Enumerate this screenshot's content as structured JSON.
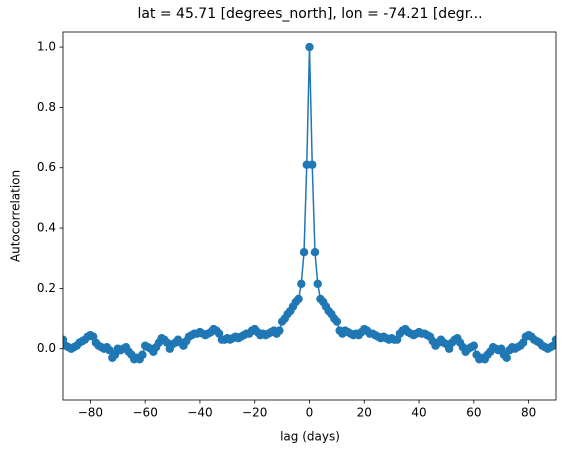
{
  "chart_data": {
    "type": "line",
    "title": "lat = 45.71 [degrees_north], lon = -74.21 [degr...",
    "xlabel": "lag (days)",
    "ylabel": "Autocorrelation",
    "x": [
      -90,
      -89,
      -88,
      -87,
      -86,
      -85,
      -84,
      -83,
      -82,
      -81,
      -80,
      -79,
      -78,
      -77,
      -76,
      -75,
      -74,
      -73,
      -72,
      -71,
      -70,
      -69,
      -68,
      -67,
      -66,
      -65,
      -64,
      -63,
      -62,
      -61,
      -60,
      -59,
      -58,
      -57,
      -56,
      -55,
      -54,
      -53,
      -52,
      -51,
      -50,
      -49,
      -48,
      -47,
      -46,
      -45,
      -44,
      -43,
      -42,
      -41,
      -40,
      -39,
      -38,
      -37,
      -36,
      -35,
      -34,
      -33,
      -32,
      -31,
      -30,
      -29,
      -28,
      -27,
      -26,
      -25,
      -24,
      -23,
      -22,
      -21,
      -20,
      -19,
      -18,
      -17,
      -16,
      -15,
      -14,
      -13,
      -12,
      -11,
      -10,
      -9,
      -8,
      -7,
      -6,
      -5,
      -4,
      -3,
      -2,
      -1,
      0,
      1,
      2,
      3,
      4,
      5,
      6,
      7,
      8,
      9,
      10,
      11,
      12,
      13,
      14,
      15,
      16,
      17,
      18,
      19,
      20,
      21,
      22,
      23,
      24,
      25,
      26,
      27,
      28,
      29,
      30,
      31,
      32,
      33,
      34,
      35,
      36,
      37,
      38,
      39,
      40,
      41,
      42,
      43,
      44,
      45,
      46,
      47,
      48,
      49,
      50,
      51,
      52,
      53,
      54,
      55,
      56,
      57,
      58,
      59,
      60,
      61,
      62,
      63,
      64,
      65,
      66,
      67,
      68,
      69,
      70,
      71,
      72,
      73,
      74,
      75,
      76,
      77,
      78,
      79,
      80,
      81,
      82,
      83,
      84,
      85,
      86,
      87,
      88,
      89,
      90
    ],
    "series": [
      {
        "color": "#1f77b4",
        "values": [
          0.03,
          0.01,
          0.005,
          0,
          0.005,
          0.01,
          0.02,
          0.025,
          0.03,
          0.04,
          0.045,
          0.04,
          0.02,
          0.01,
          0.005,
          0,
          0.005,
          -0.005,
          -0.03,
          -0.02,
          0,
          -0.005,
          0,
          0.005,
          -0.01,
          -0.02,
          -0.035,
          -0.03,
          -0.035,
          -0.02,
          0.01,
          0.005,
          0,
          -0.01,
          0.005,
          0.02,
          0.035,
          0.03,
          0.02,
          0,
          0.015,
          0.02,
          0.03,
          0.02,
          0.01,
          0.025,
          0.04,
          0.045,
          0.05,
          0.05,
          0.055,
          0.05,
          0.045,
          0.05,
          0.055,
          0.065,
          0.06,
          0.05,
          0.03,
          0.03,
          0.035,
          0.03,
          0.035,
          0.04,
          0.035,
          0.04,
          0.045,
          0.05,
          0.05,
          0.06,
          0.065,
          0.055,
          0.045,
          0.05,
          0.045,
          0.05,
          0.055,
          0.06,
          0.05,
          0.06,
          0.09,
          0.1,
          0.115,
          0.125,
          0.14,
          0.155,
          0.165,
          0.215,
          0.32,
          0.61,
          1.0,
          0.61,
          0.32,
          0.215,
          0.165,
          0.155,
          0.14,
          0.125,
          0.115,
          0.1,
          0.09,
          0.06,
          0.05,
          0.06,
          0.055,
          0.05,
          0.045,
          0.05,
          0.045,
          0.055,
          0.065,
          0.06,
          0.05,
          0.05,
          0.045,
          0.04,
          0.035,
          0.04,
          0.035,
          0.03,
          0.035,
          0.03,
          0.03,
          0.05,
          0.06,
          0.065,
          0.055,
          0.05,
          0.045,
          0.05,
          0.055,
          0.05,
          0.05,
          0.045,
          0.04,
          0.025,
          0.01,
          0.02,
          0.03,
          0.02,
          0.015,
          0,
          0.02,
          0.03,
          0.035,
          0.02,
          0.005,
          -0.01,
          0,
          0.005,
          0.01,
          -0.02,
          -0.035,
          -0.03,
          -0.035,
          -0.02,
          -0.01,
          0.005,
          0,
          -0.005,
          0,
          -0.02,
          -0.03,
          -0.005,
          0.005,
          0,
          0.005,
          0.01,
          0.02,
          0.04,
          0.045,
          0.04,
          0.03,
          0.025,
          0.02,
          0.01,
          0.005,
          0,
          0.005,
          0.01,
          0.03
        ]
      }
    ],
    "xlim": [
      -90,
      90
    ],
    "ylim": [
      -0.17,
      1.05
    ],
    "xticks": [
      {
        "value": -80,
        "label": "−80"
      },
      {
        "value": -60,
        "label": "−60"
      },
      {
        "value": -40,
        "label": "−40"
      },
      {
        "value": -20,
        "label": "−20"
      },
      0,
      20,
      40,
      60,
      80
    ],
    "yticks": [
      {
        "value": 0,
        "label": "0.0"
      },
      0.2,
      0.4,
      0.6,
      0.8,
      {
        "value": 1,
        "label": "1.0"
      }
    ],
    "grid": false
  }
}
